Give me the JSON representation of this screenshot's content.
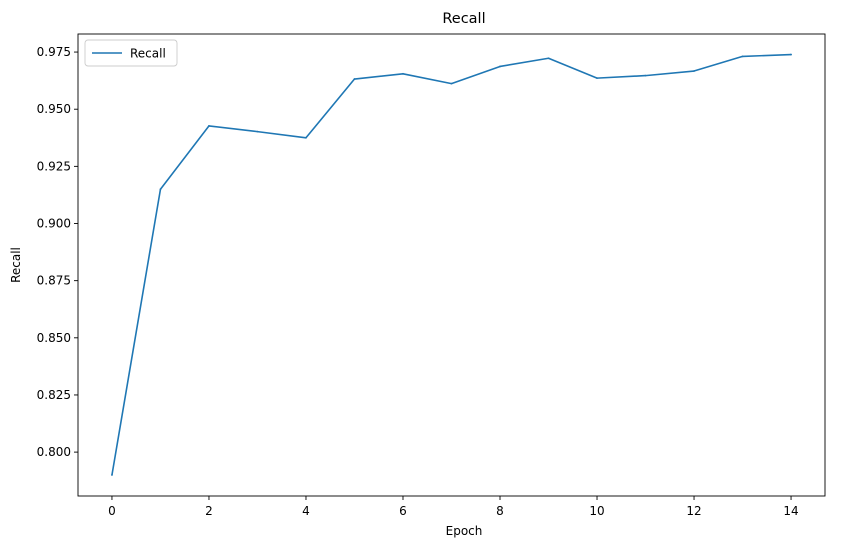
{
  "chart_data": {
    "type": "line",
    "title": "Recall",
    "xlabel": "Epoch",
    "ylabel": "Recall",
    "xlim": [
      -0.7,
      14.7
    ],
    "ylim": [
      0.7808,
      0.9829
    ],
    "x_ticks": [
      0,
      2,
      4,
      6,
      8,
      10,
      12,
      14
    ],
    "y_ticks": [
      0.8,
      0.825,
      0.85,
      0.875,
      0.9,
      0.925,
      0.95,
      0.975
    ],
    "y_tick_labels": [
      "0.800",
      "0.825",
      "0.850",
      "0.875",
      "0.900",
      "0.925",
      "0.950",
      "0.975"
    ],
    "grid": false,
    "legend": {
      "position": "upper-left",
      "entries": [
        "Recall"
      ]
    },
    "series": [
      {
        "name": "Recall",
        "color": "#1f77b4",
        "x": [
          0,
          1,
          2,
          3,
          4,
          5,
          6,
          7,
          8,
          9,
          10,
          11,
          12,
          13,
          14
        ],
        "values": [
          0.79,
          0.915,
          0.9427,
          0.9402,
          0.9375,
          0.9632,
          0.9655,
          0.9612,
          0.9687,
          0.9723,
          0.9636,
          0.9647,
          0.9667,
          0.9731,
          0.9739
        ]
      }
    ]
  }
}
